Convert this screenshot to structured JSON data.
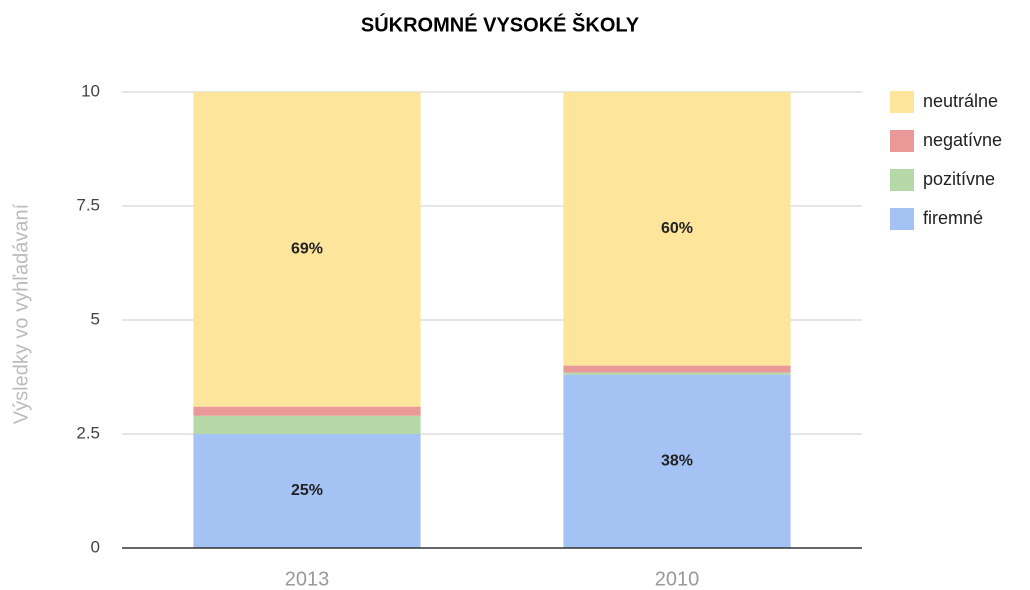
{
  "chart_data": {
    "type": "stacked_bar",
    "title": "SÚKROMNÉ VYSOKÉ ŠKOLY",
    "y_label": "Výsledky vo vyhľadávaní",
    "categories": [
      "2013",
      "2010"
    ],
    "series": [
      {
        "name": "firemné",
        "color": "#a4c2f4",
        "values": [
          2.5,
          3.8
        ],
        "value_labels": [
          "25%",
          "38%"
        ]
      },
      {
        "name": "pozitívne",
        "color": "#b6d7a8",
        "values": [
          0.4,
          0.05
        ],
        "value_labels": [
          null,
          null
        ]
      },
      {
        "name": "negatívne",
        "color": "#ea9999",
        "values": [
          0.2,
          0.15
        ],
        "value_labels": [
          null,
          null
        ]
      },
      {
        "name": "neutrálne",
        "color": "#fde59c",
        "values": [
          6.9,
          6.0
        ],
        "value_labels": [
          "69%",
          "60%"
        ]
      }
    ],
    "ylim": [
      0,
      10
    ],
    "yticks": [
      0,
      2.5,
      5,
      7.5,
      10
    ],
    "grid": true,
    "legend": "right"
  }
}
